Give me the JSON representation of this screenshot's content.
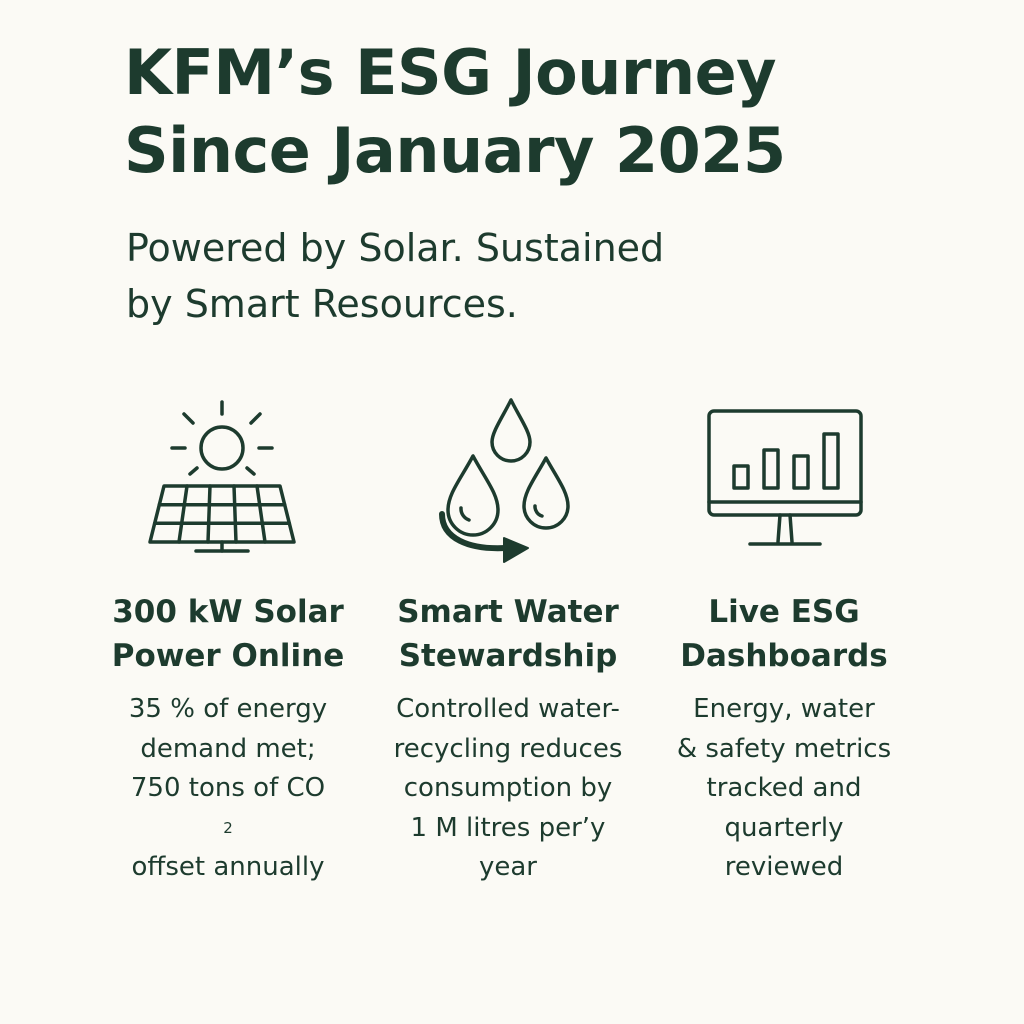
{
  "title": {
    "line1": "KFM’s ESG Journey",
    "line2": "Since January 2025"
  },
  "subtitle": {
    "line1": "Powered by Solar. Sustained",
    "line2": "by Smart Resources."
  },
  "features": [
    {
      "icon": "solar-panel-icon",
      "heading": [
        "300 kW Solar",
        "Power Online"
      ],
      "body": [
        "35 % of energy",
        "demand met;",
        "750 tons of CO",
        "offset annually"
      ],
      "body_subscript": "2"
    },
    {
      "icon": "water-drops-icon",
      "heading": [
        "Smart Water",
        "Stewardship"
      ],
      "body": [
        "Controlled water-",
        "recycling reduces",
        "consumption by",
        "1 M litres per’y",
        "year"
      ]
    },
    {
      "icon": "dashboard-monitor-icon",
      "heading": [
        "Live ESG",
        "Dashboards"
      ],
      "body": [
        "Energy, water",
        "& safety metrics",
        "tracked and",
        "quarterly",
        "reviewed"
      ]
    }
  ],
  "colors": {
    "background": "#fbfaf5",
    "ink": "#1d3b2e"
  }
}
